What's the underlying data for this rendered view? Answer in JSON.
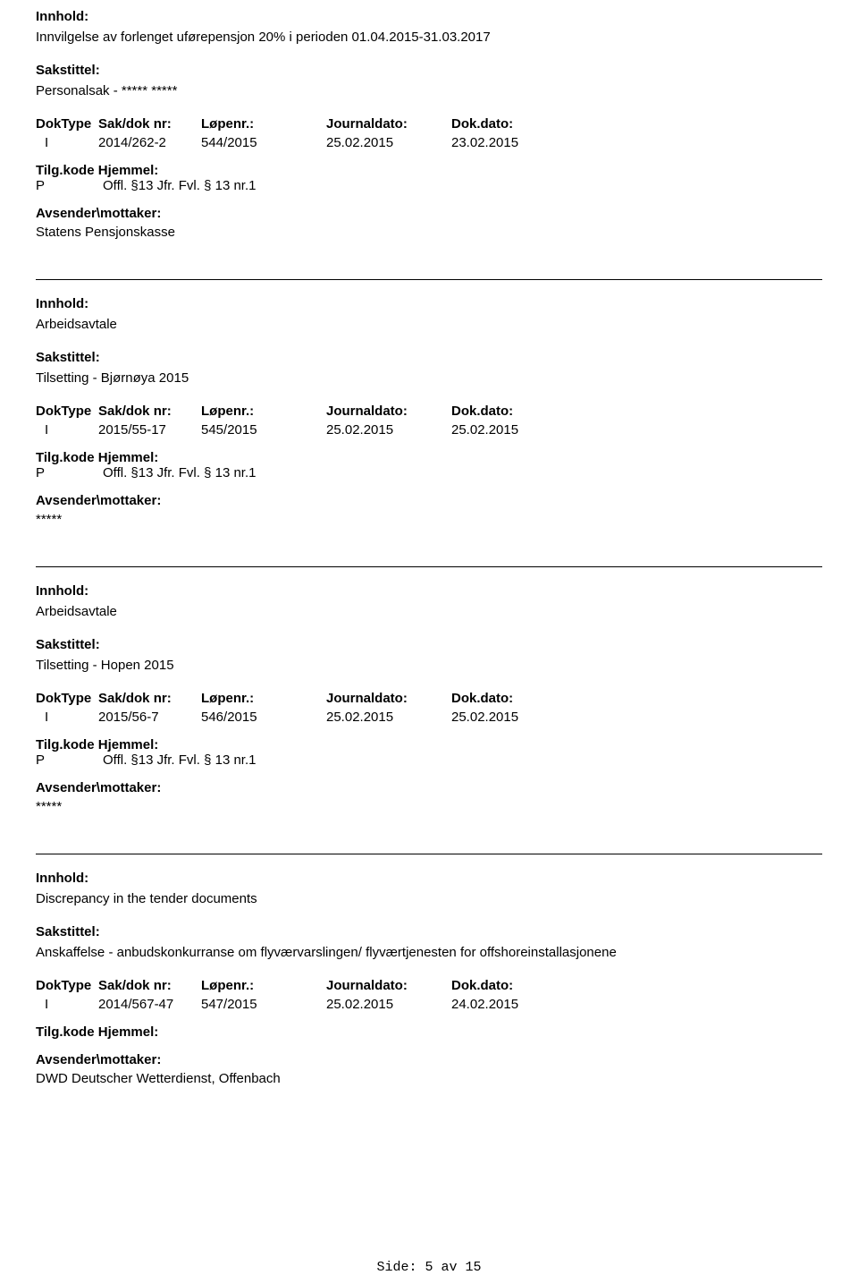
{
  "labels": {
    "innhold": "Innhold:",
    "sakstittel": "Sakstittel:",
    "doktype": "DokType",
    "sakdok": "Sak/dok nr:",
    "lopenr": "Løpenr.:",
    "journaldato": "Journaldato:",
    "dokdato": "Dok.dato:",
    "tilgkode": "Tilg.kode",
    "hjemmel": "Hjemmel:",
    "avsender": "Avsender\\mottaker:"
  },
  "records": [
    {
      "innhold": "Innvilgelse av forlenget uførepensjon 20% i perioden 01.04.2015-31.03.2017",
      "sakstittel": "Personalsak - ***** *****",
      "doktype": "I",
      "sakdok": "2014/262-2",
      "lopenr": "544/2015",
      "journaldato": "25.02.2015",
      "dokdato": "23.02.2015",
      "tilgcode": "P",
      "hjemmel": "Offl. §13 Jfr. Fvl. § 13 nr.1",
      "avsender": "Statens Pensjonskasse"
    },
    {
      "innhold": "Arbeidsavtale",
      "sakstittel": "Tilsetting - Bjørnøya 2015",
      "doktype": "I",
      "sakdok": "2015/55-17",
      "lopenr": "545/2015",
      "journaldato": "25.02.2015",
      "dokdato": "25.02.2015",
      "tilgcode": "P",
      "hjemmel": "Offl. §13 Jfr. Fvl. § 13 nr.1",
      "avsender": "*****"
    },
    {
      "innhold": "Arbeidsavtale",
      "sakstittel": "Tilsetting -  Hopen 2015",
      "doktype": "I",
      "sakdok": "2015/56-7",
      "lopenr": "546/2015",
      "journaldato": "25.02.2015",
      "dokdato": "25.02.2015",
      "tilgcode": "P",
      "hjemmel": "Offl. §13 Jfr. Fvl. § 13 nr.1",
      "avsender": "*****"
    },
    {
      "innhold": "Discrepancy in the tender documents",
      "sakstittel": "Anskaffelse - anbudskonkurranse om flyværvarslingen/ flyværtjenesten for offshoreinstallasjonene",
      "doktype": "I",
      "sakdok": "2014/567-47",
      "lopenr": "547/2015",
      "journaldato": "25.02.2015",
      "dokdato": "24.02.2015",
      "tilgcode": "",
      "hjemmel": "",
      "avsender": "DWD Deutscher Wetterdienst, Offenbach"
    }
  ],
  "footer": "Side: 5 av 15"
}
